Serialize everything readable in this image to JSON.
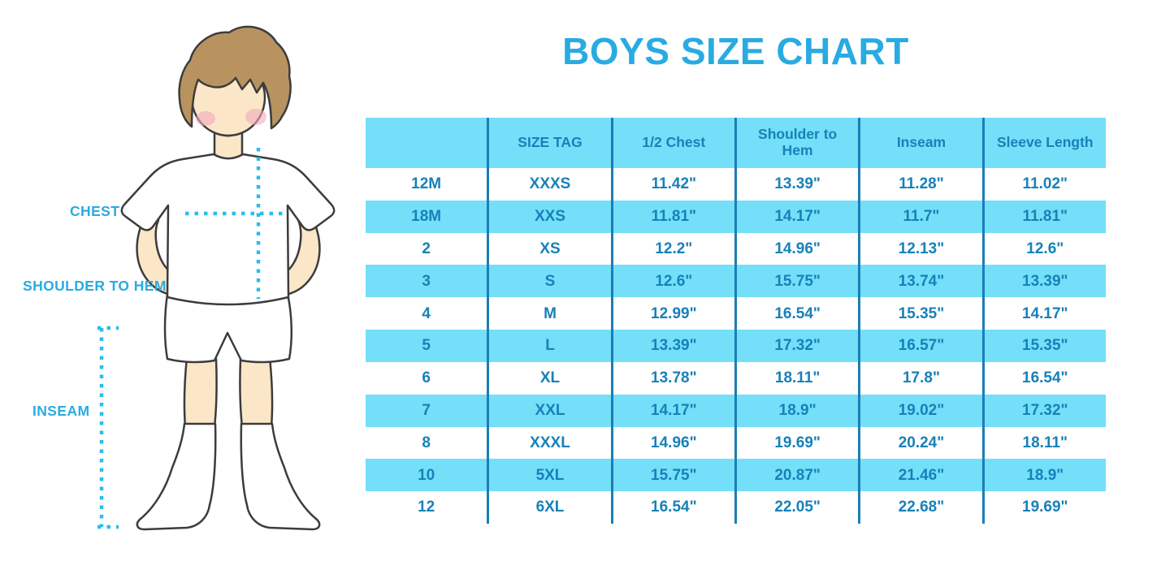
{
  "title": "BOYS SIZE CHART",
  "colors": {
    "accent": "#29ABE2",
    "band": "#74DFF9",
    "table_text": "#1781B8",
    "grid_line": "#1B7EB5",
    "dots": "#2BBCEC"
  },
  "figure_labels": {
    "chest": "CHEST",
    "shoulder_to_hem": "SHOULDER TO HEM",
    "inseam": "INSEAM"
  },
  "chart_data": {
    "type": "table",
    "title": "BOYS SIZE CHART",
    "units": "inches",
    "columns": [
      "",
      "SIZE TAG",
      "1/2 Chest",
      "Shoulder to Hem",
      "Inseam",
      "Sleeve Length"
    ],
    "rows": [
      [
        "12M",
        "XXXS",
        "11.42\"",
        "13.39\"",
        "11.28\"",
        "11.02\""
      ],
      [
        "18M",
        "XXS",
        "11.81\"",
        "14.17\"",
        "11.7\"",
        "11.81\""
      ],
      [
        "2",
        "XS",
        "12.2\"",
        "14.96\"",
        "12.13\"",
        "12.6\""
      ],
      [
        "3",
        "S",
        "12.6\"",
        "15.75\"",
        "13.74\"",
        "13.39\""
      ],
      [
        "4",
        "M",
        "12.99\"",
        "16.54\"",
        "15.35\"",
        "14.17\""
      ],
      [
        "5",
        "L",
        "13.39\"",
        "17.32\"",
        "16.57\"",
        "15.35\""
      ],
      [
        "6",
        "XL",
        "13.78\"",
        "18.11\"",
        "17.8\"",
        "16.54\""
      ],
      [
        "7",
        "XXL",
        "14.17\"",
        "18.9\"",
        "19.02\"",
        "17.32\""
      ],
      [
        "8",
        "XXXL",
        "14.96\"",
        "19.69\"",
        "20.24\"",
        "18.11\""
      ],
      [
        "10",
        "5XL",
        "15.75\"",
        "20.87\"",
        "21.46\"",
        "18.9\""
      ],
      [
        "12",
        "6XL",
        "16.54\"",
        "22.05\"",
        "22.68\"",
        "19.69\""
      ]
    ],
    "shaded_rows": [
      "header",
      "18M",
      "3",
      "5",
      "7",
      "10"
    ],
    "legend_position": "none",
    "grid": "vertical-only"
  }
}
